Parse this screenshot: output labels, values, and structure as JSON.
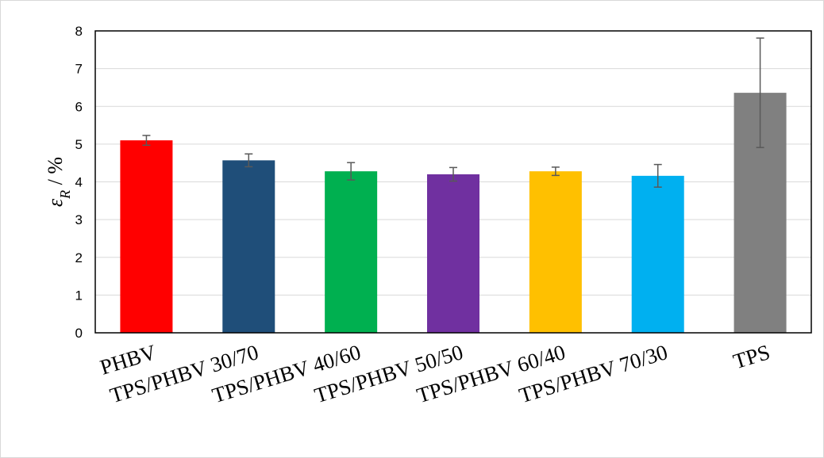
{
  "chart_data": {
    "type": "bar",
    "categories": [
      "PHBV",
      "TPS/PHBV 30/70",
      "TPS/PHBV 40/60",
      "TPS/PHBV 50/50",
      "TPS/PHBV 60/40",
      "TPS/PHBV 70/30",
      "TPS"
    ],
    "values": [
      5.1,
      4.57,
      4.28,
      4.2,
      4.28,
      4.16,
      6.36
    ],
    "errors": [
      0.13,
      0.17,
      0.23,
      0.18,
      0.11,
      0.3,
      1.45
    ],
    "colors": [
      "#ff0000",
      "#1f4e79",
      "#00b050",
      "#7030a0",
      "#ffc000",
      "#00b0f0",
      "#808080"
    ],
    "error_bar_color": "#595959",
    "ylabel_symbol": "ε",
    "ylabel_subscript": "R",
    "ylabel_unit": " / %",
    "ylim": [
      0,
      8
    ],
    "yticks": [
      "0",
      "1",
      "2",
      "3",
      "4",
      "5",
      "6",
      "7",
      "8"
    ],
    "grid": true,
    "grid_color": "#d9d9d9"
  }
}
